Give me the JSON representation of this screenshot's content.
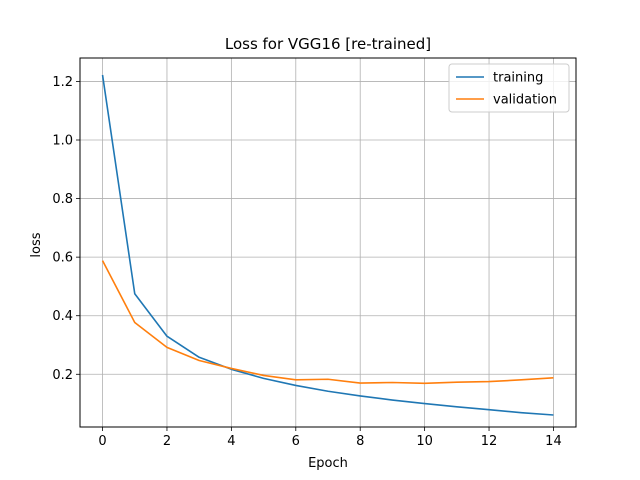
{
  "chart_data": {
    "type": "line",
    "title": "Loss for VGG16 [re-trained]",
    "xlabel": "Epoch",
    "ylabel": "loss",
    "x": [
      0,
      1,
      2,
      3,
      4,
      5,
      6,
      7,
      8,
      9,
      10,
      11,
      12,
      13,
      14
    ],
    "xlim": [
      -0.7,
      14.7
    ],
    "ylim": [
      0.02,
      1.28
    ],
    "xticks": [
      0,
      2,
      4,
      6,
      8,
      10,
      12,
      14
    ],
    "yticks": [
      0.2,
      0.4,
      0.6,
      0.8,
      1.0,
      1.2
    ],
    "ytick_labels": [
      "0.2",
      "0.4",
      "0.6",
      "0.8",
      "1.0",
      "1.2"
    ],
    "grid": true,
    "legend_position": "top-right",
    "series": [
      {
        "name": "training",
        "color": "#1f77b4",
        "values": [
          1.222,
          0.475,
          0.33,
          0.258,
          0.217,
          0.186,
          0.162,
          0.142,
          0.126,
          0.112,
          0.1,
          0.089,
          0.079,
          0.069,
          0.061
        ]
      },
      {
        "name": "validation",
        "color": "#ff7f0e",
        "values": [
          0.588,
          0.377,
          0.292,
          0.247,
          0.22,
          0.196,
          0.181,
          0.183,
          0.17,
          0.172,
          0.169,
          0.173,
          0.175,
          0.181,
          0.188
        ]
      }
    ]
  }
}
